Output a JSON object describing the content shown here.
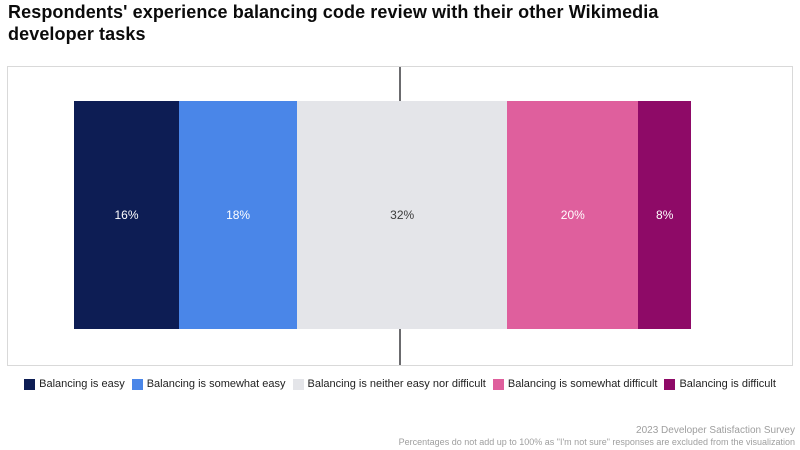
{
  "title": "Respondents' experience balancing code review with their other Wikimedia\ndeveloper tasks",
  "chart_data": {
    "type": "bar",
    "subtype": "horizontal-diverging-stacked",
    "title": "Respondents' experience balancing code review with their other Wikimedia developer tasks",
    "categories": [
      "Balancing is easy",
      "Balancing is somewhat easy",
      "Balancing is neither easy nor difficult",
      "Balancing is somewhat difficult",
      "Balancing is difficult"
    ],
    "values": [
      16,
      18,
      32,
      20,
      8
    ],
    "labels": [
      "16%",
      "18%",
      "32%",
      "20%",
      "8%"
    ],
    "unit": "percent",
    "colors": [
      "#0d1d54",
      "#4a86e8",
      "#e4e5e9",
      "#df5f9d",
      "#8e0a67"
    ],
    "label_colors": [
      "#ffffff",
      "#ffffff",
      "#3c3c3c",
      "#ffffff",
      "#ffffff"
    ],
    "legend_position": "bottom",
    "grid": false,
    "axes_visible": false,
    "reference_line": "vertical line at midpoint of neutral category"
  },
  "legend": {
    "items": [
      {
        "label": "Balancing is easy",
        "color": "#0d1d54"
      },
      {
        "label": "Balancing is somewhat easy",
        "color": "#4a86e8"
      },
      {
        "label": "Balancing is neither easy nor difficult",
        "color": "#e4e5e9"
      },
      {
        "label": "Balancing is somewhat difficult",
        "color": "#df5f9d"
      },
      {
        "label": "Balancing is difficult",
        "color": "#8e0a67"
      }
    ]
  },
  "footer": {
    "line1": "2023 Developer Satisfaction Survey",
    "line2": "Percentages do not add up to 100% as \"I'm not sure\" responses are excluded from the visualization"
  }
}
